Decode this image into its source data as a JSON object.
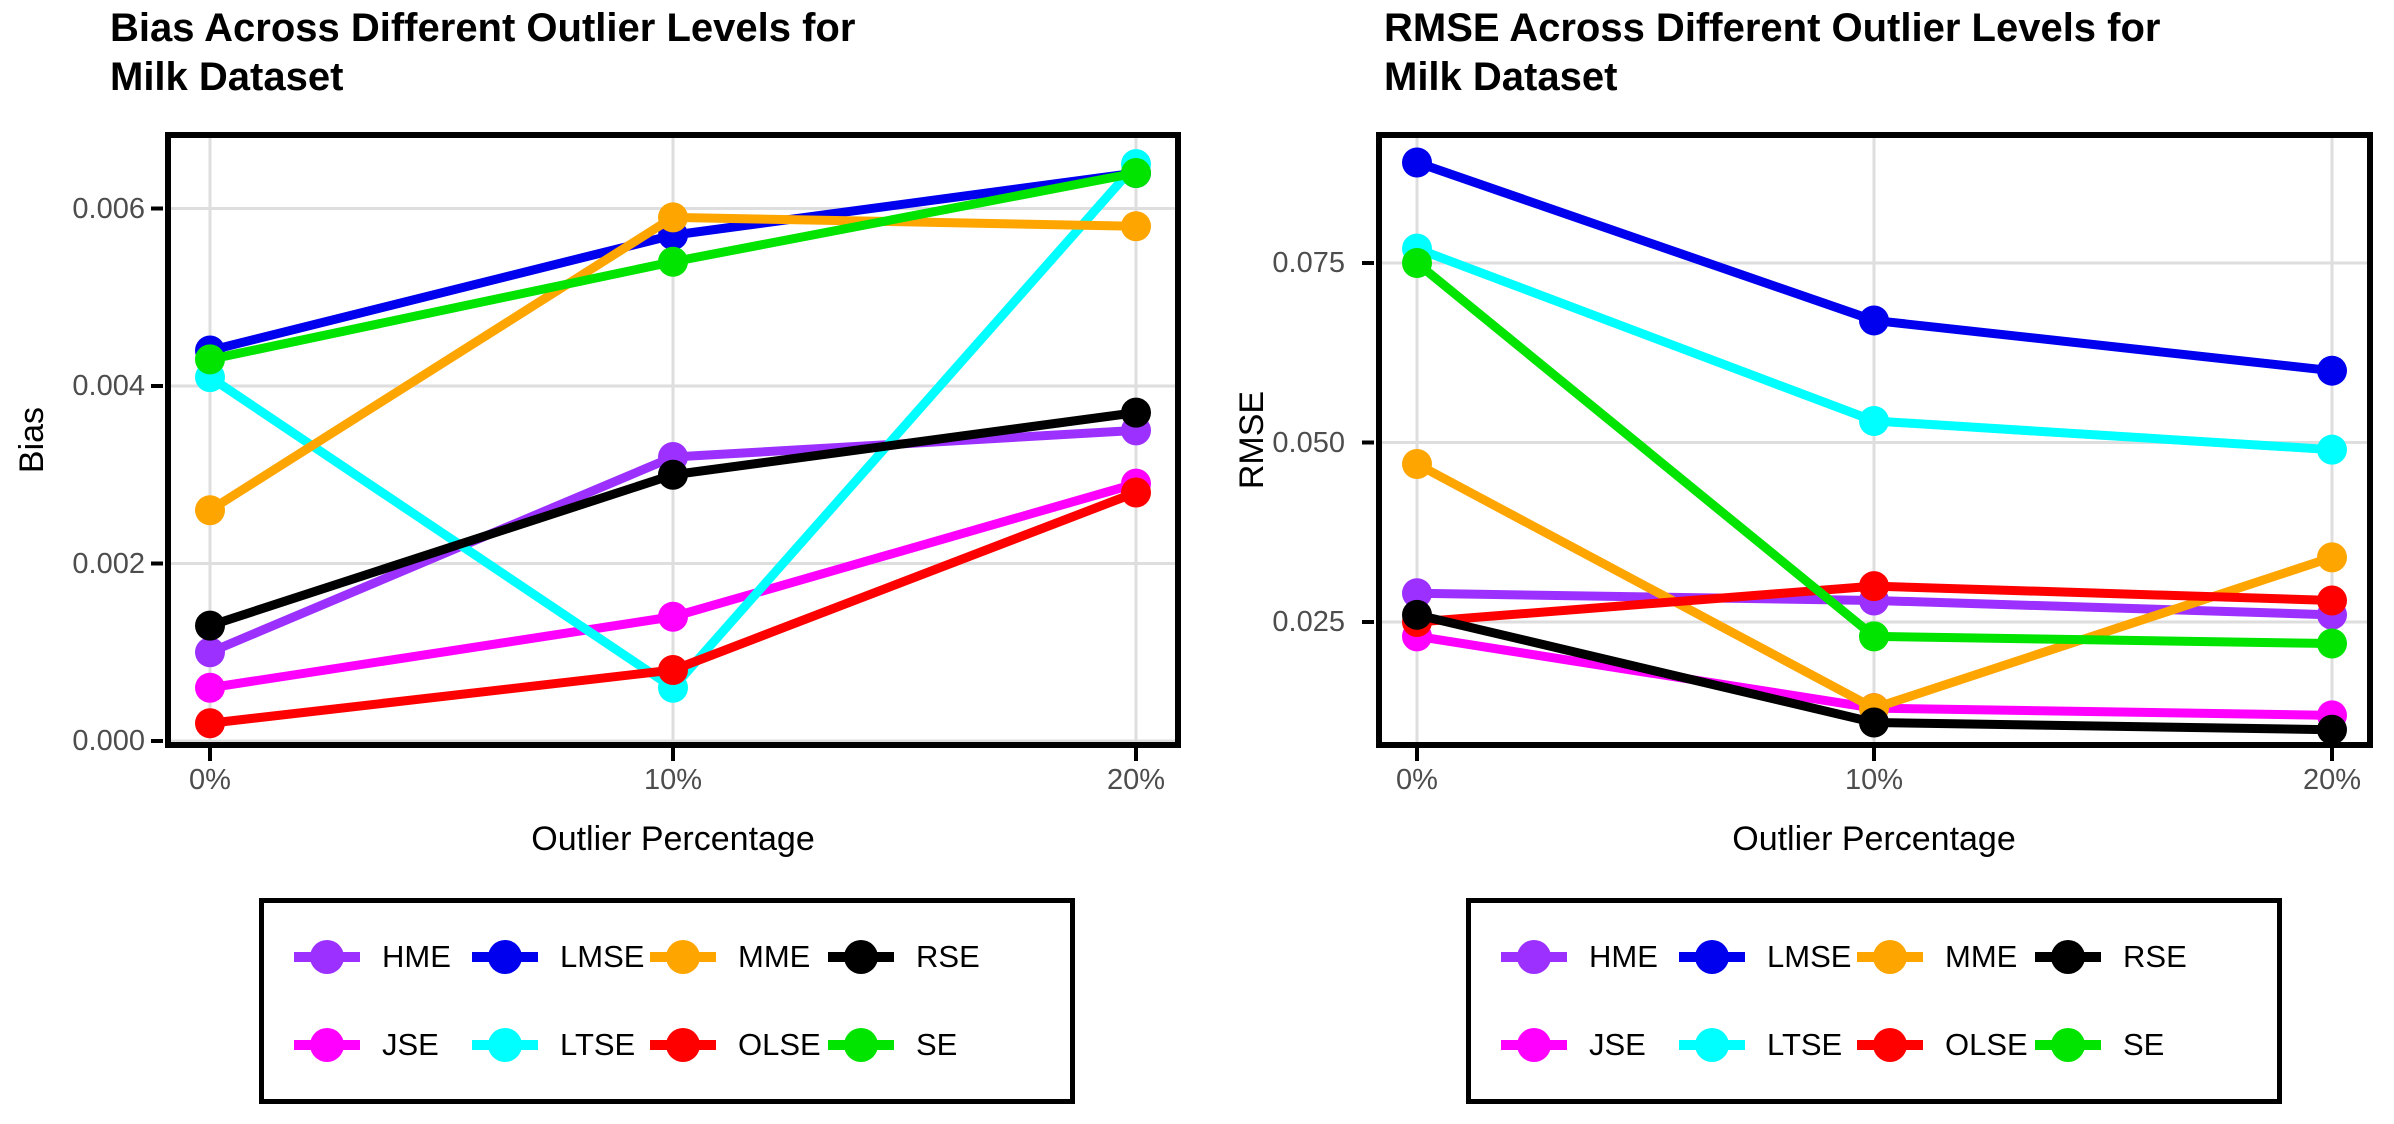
{
  "figure": {
    "background": "#ffffff",
    "tick_label_color": "#4D4D4D",
    "gridline_color": "#DEDEDE",
    "panel_border_color": "#000000"
  },
  "chart_data": [
    {
      "type": "line",
      "title_line1": "Bias Across Different Outlier Levels for",
      "title_line2": "Milk Dataset",
      "xlabel": "Outlier Percentage",
      "ylabel": "Bias",
      "categories": [
        "0%",
        "10%",
        "20%"
      ],
      "y_ticks": [
        0.0,
        0.002,
        0.004,
        0.006
      ],
      "y_tick_labels": [
        "0.000",
        "0.002",
        "0.004",
        "0.006"
      ],
      "ylim": [
        -0.0001,
        0.00695
      ],
      "grid": true,
      "legend_position": "bottom",
      "series": [
        {
          "name": "HME",
          "color": "#9B30FF",
          "values": [
            0.001,
            0.0032,
            0.0035
          ]
        },
        {
          "name": "JSE",
          "color": "#FF00FF",
          "values": [
            0.0006,
            0.0014,
            0.0029
          ]
        },
        {
          "name": "LMSE",
          "color": "#0000EE",
          "values": [
            0.0044,
            0.0057,
            0.0064
          ]
        },
        {
          "name": "LTSE",
          "color": "#00FFFF",
          "values": [
            0.0041,
            0.0006,
            0.0065
          ]
        },
        {
          "name": "MME",
          "color": "#FFA500",
          "values": [
            0.0026,
            0.0059,
            0.0058
          ]
        },
        {
          "name": "OLSE",
          "color": "#FF0000",
          "values": [
            0.0002,
            0.0008,
            0.0028
          ]
        },
        {
          "name": "RSE",
          "color": "#000000",
          "values": [
            0.0013,
            0.003,
            0.0037
          ]
        },
        {
          "name": "SE",
          "color": "#00E400",
          "values": [
            0.0043,
            0.0054,
            0.0064
          ]
        }
      ]
    },
    {
      "type": "line",
      "title_line1": "RMSE Across Different Outlier Levels for",
      "title_line2": "Milk Dataset",
      "xlabel": "Outlier Percentage",
      "ylabel": "RMSE",
      "categories": [
        "0%",
        "10%",
        "20%"
      ],
      "y_ticks": [
        0.025,
        0.05,
        0.075
      ],
      "y_tick_labels": [
        "0.025",
        "0.050",
        "0.075"
      ],
      "ylim": [
        0.0072,
        0.0935
      ],
      "grid": true,
      "legend_position": "bottom",
      "series": [
        {
          "name": "HME",
          "color": "#9B30FF",
          "values": [
            0.029,
            0.028,
            0.026
          ]
        },
        {
          "name": "JSE",
          "color": "#FF00FF",
          "values": [
            0.023,
            0.013,
            0.012
          ]
        },
        {
          "name": "LMSE",
          "color": "#0000EE",
          "values": [
            0.089,
            0.067,
            0.06
          ]
        },
        {
          "name": "LTSE",
          "color": "#00FFFF",
          "values": [
            0.077,
            0.053,
            0.049
          ]
        },
        {
          "name": "MME",
          "color": "#FFA500",
          "values": [
            0.047,
            0.013,
            0.034
          ]
        },
        {
          "name": "OLSE",
          "color": "#FF0000",
          "values": [
            0.025,
            0.03,
            0.028
          ]
        },
        {
          "name": "RSE",
          "color": "#000000",
          "values": [
            0.026,
            0.011,
            0.01
          ]
        },
        {
          "name": "SE",
          "color": "#00E400",
          "values": [
            0.075,
            0.023,
            0.022
          ]
        }
      ]
    }
  ]
}
